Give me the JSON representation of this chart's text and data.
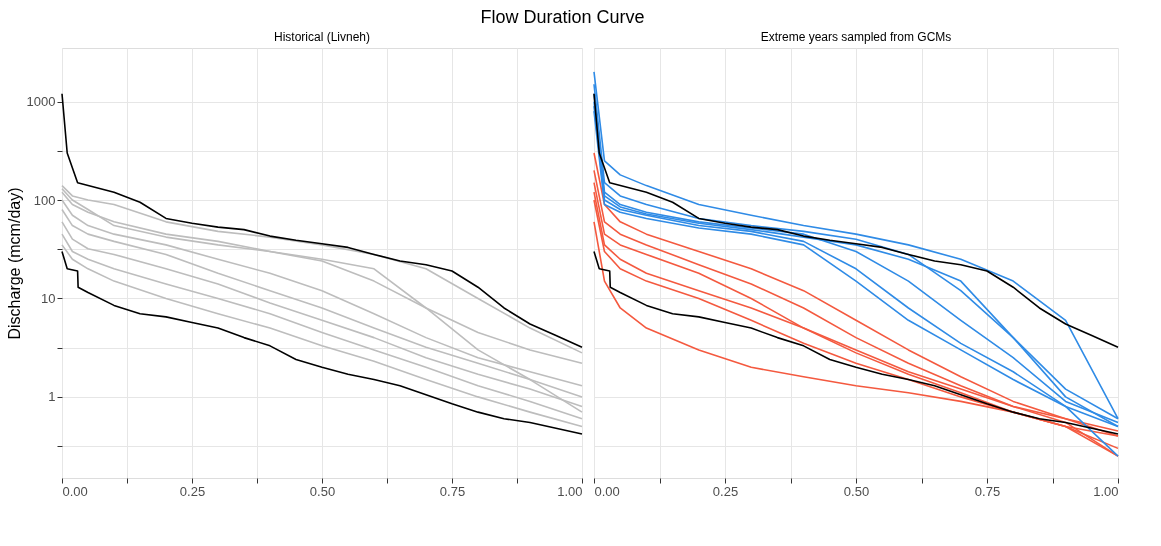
{
  "chart_data": [
    {
      "type": "line",
      "title": "Flow Duration Curve",
      "subtitle": "Historical (Livneh)",
      "ylabel": "Discharge (mcm/day)",
      "log": "y",
      "grid": true,
      "legend": false,
      "line_style": "solid",
      "marker": "none",
      "xlim": [
        0,
        1
      ],
      "ylim": [
        0.15,
        3500
      ],
      "xticks": [
        {
          "value": 0,
          "label": "0.00"
        },
        {
          "value": 0.125,
          "label": null
        },
        {
          "value": 0.25,
          "label": "0.25"
        },
        {
          "value": 0.375,
          "label": null
        },
        {
          "value": 0.5,
          "label": "0.50"
        },
        {
          "value": 0.625,
          "label": null
        },
        {
          "value": 0.75,
          "label": "0.75"
        },
        {
          "value": 0.875,
          "label": null
        },
        {
          "value": 1,
          "label": "1.00"
        }
      ],
      "yticks": [
        {
          "value": 0.316,
          "label": null
        },
        1,
        {
          "value": 3.16,
          "label": null
        },
        10,
        {
          "value": 31.6,
          "label": null
        },
        100,
        {
          "value": 316,
          "label": null
        },
        1000
      ],
      "x": [
        0,
        0.02,
        0.05,
        0.1,
        0.2,
        0.3,
        0.4,
        0.5,
        0.6,
        0.7,
        0.8,
        0.9,
        1.0
      ],
      "series": [
        {
          "color": "#bdbdbd",
          "values": [
            140,
            110,
            100,
            90,
            60,
            48,
            42,
            35,
            28,
            20,
            10,
            5,
            2.8
          ]
        },
        {
          "color": "#bdbdbd",
          "values": [
            120,
            90,
            75,
            60,
            45,
            38,
            30,
            24,
            15,
            8,
            4.5,
            3,
            2.2
          ]
        },
        {
          "color": "#bdbdbd",
          "values": [
            100,
            70,
            55,
            45,
            35,
            25,
            18,
            12,
            7,
            4,
            2.5,
            1.8,
            1.3
          ]
        },
        {
          "color": "#bdbdbd",
          "values": [
            80,
            55,
            45,
            38,
            28,
            18,
            12,
            8,
            5,
            3.2,
            2.2,
            1.5,
            1.0
          ]
        },
        {
          "color": "#bdbdbd",
          "values": [
            60,
            40,
            32,
            28,
            20,
            14,
            9,
            6,
            4,
            2.5,
            1.7,
            1.2,
            0.8
          ]
        },
        {
          "color": "#bdbdbd",
          "values": [
            45,
            30,
            25,
            20,
            14,
            10,
            7,
            4.5,
            3,
            2,
            1.3,
            0.9,
            0.6
          ]
        },
        {
          "color": "#bdbdbd",
          "values": [
            35,
            25,
            20,
            15,
            10,
            7,
            5,
            3.3,
            2.3,
            1.5,
            1.0,
            0.7,
            0.5
          ]
        },
        {
          "color": "#bdbdbd",
          "values": [
            130,
            100,
            80,
            55,
            42,
            35,
            30,
            25,
            20,
            8,
            3,
            1.5,
            0.7
          ]
        },
        {
          "color": "#000000",
          "x": [
            0,
            0.01,
            0.03,
            0.1,
            0.15,
            0.2,
            0.25,
            0.3,
            0.35,
            0.4,
            0.45,
            0.5,
            0.55,
            0.6,
            0.65,
            0.7,
            0.75,
            0.8,
            0.85,
            0.9,
            0.95,
            1.0
          ],
          "values": [
            1200,
            300,
            150,
            120,
            95,
            65,
            58,
            53,
            50,
            43,
            39,
            36,
            33,
            28,
            24,
            22,
            19,
            13,
            8,
            5.5,
            4.2,
            3.2
          ]
        },
        {
          "color": "#000000",
          "x": [
            0,
            0.01,
            0.03,
            0.031,
            0.05,
            0.1,
            0.15,
            0.2,
            0.25,
            0.3,
            0.35,
            0.4,
            0.45,
            0.5,
            0.55,
            0.6,
            0.65,
            0.7,
            0.75,
            0.8,
            0.85,
            0.9,
            0.95,
            1.0
          ],
          "values": [
            30,
            20,
            19,
            13,
            11.5,
            8.5,
            7,
            6.5,
            5.7,
            5,
            4,
            3.3,
            2.4,
            2.0,
            1.7,
            1.5,
            1.3,
            1.05,
            0.85,
            0.7,
            0.6,
            0.55,
            0.48,
            0.42
          ]
        }
      ]
    },
    {
      "type": "line",
      "subtitle": "Extreme years sampled from GCMs",
      "log": "y",
      "grid": true,
      "legend": false,
      "line_style": "solid",
      "marker": "none",
      "tick_labels": "x",
      "xlim": [
        0,
        1
      ],
      "ylim": [
        0.15,
        3500
      ],
      "xticks": [
        {
          "value": 0,
          "label": "0.00"
        },
        {
          "value": 0.125,
          "label": null
        },
        {
          "value": 0.25,
          "label": "0.25"
        },
        {
          "value": 0.375,
          "label": null
        },
        {
          "value": 0.5,
          "label": "0.50"
        },
        {
          "value": 0.625,
          "label": null
        },
        {
          "value": 0.75,
          "label": "0.75"
        },
        {
          "value": 0.875,
          "label": null
        },
        {
          "value": 1,
          "label": "1.00"
        }
      ],
      "yticks": [
        {
          "value": 0.316,
          "label": null
        },
        1,
        {
          "value": 3.16,
          "label": null
        },
        10,
        {
          "value": 31.6,
          "label": null
        },
        100,
        {
          "value": 316,
          "label": null
        },
        1000
      ],
      "x": [
        0,
        0.02,
        0.05,
        0.1,
        0.2,
        0.3,
        0.4,
        0.5,
        0.6,
        0.7,
        0.8,
        0.9,
        1.0
      ],
      "series": [
        {
          "color": "#f4593f",
          "values": [
            300,
            90,
            60,
            45,
            30,
            20,
            12,
            6,
            3,
            1.6,
            0.9,
            0.6,
            0.4
          ]
        },
        {
          "color": "#f4593f",
          "values": [
            200,
            60,
            45,
            35,
            22,
            14,
            8,
            4,
            2.2,
            1.3,
            0.8,
            0.55,
            0.25
          ]
        },
        {
          "color": "#f4593f",
          "values": [
            150,
            45,
            35,
            28,
            18,
            10,
            5,
            2.8,
            1.7,
            1.1,
            0.7,
            0.5,
            0.4
          ]
        },
        {
          "color": "#f4593f",
          "values": [
            100,
            30,
            20,
            15,
            10,
            6,
            3.5,
            2.2,
            1.5,
            1.0,
            0.7,
            0.5,
            0.3
          ]
        },
        {
          "color": "#f4593f",
          "values": [
            60,
            15,
            8,
            5,
            3,
            2,
            1.6,
            1.3,
            1.1,
            0.9,
            0.7,
            0.5,
            0.25
          ]
        },
        {
          "color": "#f4593f",
          "values": [
            120,
            35,
            25,
            18,
            12,
            8,
            5,
            3,
            1.8,
            1.2,
            0.8,
            0.6,
            0.45
          ]
        },
        {
          "color": "#2f8be6",
          "values": [
            2000,
            250,
            180,
            140,
            90,
            70,
            55,
            45,
            35,
            25,
            15,
            6,
            0.6
          ]
        },
        {
          "color": "#2f8be6",
          "values": [
            1500,
            150,
            110,
            90,
            65,
            55,
            48,
            40,
            28,
            12,
            4,
            1.2,
            0.6
          ]
        },
        {
          "color": "#2f8be6",
          "values": [
            1200,
            120,
            90,
            75,
            60,
            52,
            45,
            30,
            15,
            6,
            2.5,
            0.9,
            0.55
          ]
        },
        {
          "color": "#2f8be6",
          "values": [
            900,
            100,
            80,
            70,
            55,
            48,
            38,
            20,
            8,
            3.5,
            1.8,
            0.8,
            0.5
          ]
        },
        {
          "color": "#2f8be6",
          "values": [
            1000,
            110,
            85,
            72,
            58,
            50,
            42,
            35,
            25,
            15,
            4,
            1.0,
            0.5
          ]
        },
        {
          "color": "#2f8be6",
          "values": [
            800,
            90,
            75,
            65,
            52,
            45,
            35,
            15,
            6,
            3,
            1.5,
            0.8,
            0.25
          ]
        },
        {
          "color": "#000000",
          "x": [
            0,
            0.01,
            0.03,
            0.1,
            0.15,
            0.2,
            0.25,
            0.3,
            0.35,
            0.4,
            0.45,
            0.5,
            0.55,
            0.6,
            0.65,
            0.7,
            0.75,
            0.8,
            0.85,
            0.9,
            0.95,
            1.0
          ],
          "values": [
            1200,
            300,
            150,
            120,
            95,
            65,
            58,
            53,
            50,
            43,
            39,
            36,
            33,
            28,
            24,
            22,
            19,
            13,
            8,
            5.5,
            4.2,
            3.2
          ]
        },
        {
          "color": "#000000",
          "x": [
            0,
            0.01,
            0.03,
            0.031,
            0.05,
            0.1,
            0.15,
            0.2,
            0.25,
            0.3,
            0.35,
            0.4,
            0.45,
            0.5,
            0.55,
            0.6,
            0.65,
            0.7,
            0.75,
            0.8,
            0.85,
            0.9,
            0.95,
            1.0
          ],
          "values": [
            30,
            20,
            19,
            13,
            11.5,
            8.5,
            7,
            6.5,
            5.7,
            5,
            4,
            3.3,
            2.4,
            2.0,
            1.7,
            1.5,
            1.3,
            1.05,
            0.85,
            0.7,
            0.6,
            0.55,
            0.48,
            0.42
          ]
        }
      ]
    }
  ]
}
